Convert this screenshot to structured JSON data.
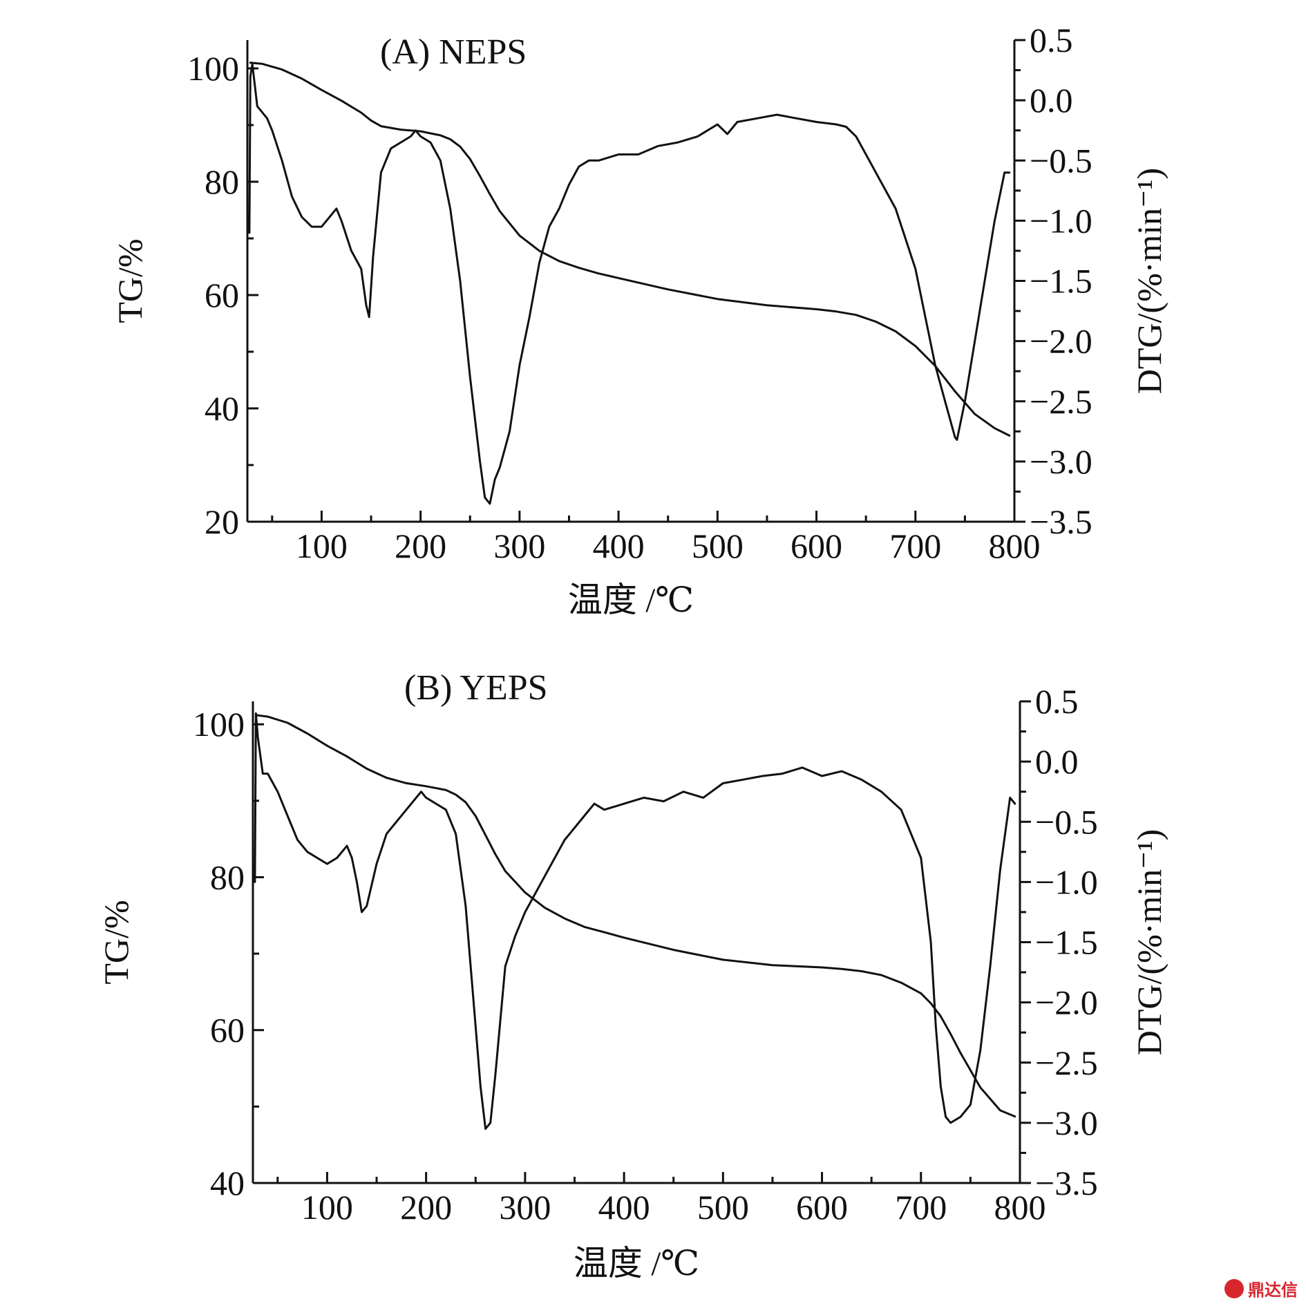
{
  "watermark": {
    "text": "鼎达信",
    "color": "#d8262f"
  },
  "chart_data": [
    {
      "type": "line",
      "title": "(A)  NEPS",
      "xlabel": "温度 /℃",
      "ylabel_left": "TG/%",
      "ylabel_right": "DTG/(%·min⁻¹)",
      "xlim": [
        25,
        800
      ],
      "ylim_left": [
        20,
        105
      ],
      "ylim_right": [
        -3.5,
        0.5
      ],
      "x_ticks": [
        100,
        200,
        300,
        400,
        500,
        600,
        700,
        800
      ],
      "y_left_ticks": [
        20,
        40,
        60,
        80,
        100
      ],
      "y_right_ticks": [
        -3.5,
        -3.0,
        -2.5,
        -2.0,
        -1.5,
        -1.0,
        -0.5,
        0.0,
        0.5
      ],
      "x_tick_labels": [
        "100",
        "200",
        "300",
        "400",
        "500",
        "600",
        "700",
        "800"
      ],
      "y_left_tick_labels": [
        "20",
        "40",
        "60",
        "80",
        "100"
      ],
      "y_right_tick_labels": [
        "−3.5",
        "−3.0",
        "−2.5",
        "−2.0",
        "−1.5",
        "−1.0",
        "−0.5",
        "0.0",
        "0.5"
      ],
      "grid": false,
      "series": [
        {
          "axis": "left",
          "x": [
            28,
            40,
            60,
            80,
            100,
            120,
            140,
            150,
            160,
            180,
            200,
            220,
            230,
            240,
            250,
            260,
            270,
            280,
            300,
            320,
            340,
            360,
            380,
            400,
            450,
            500,
            550,
            600,
            620,
            640,
            660,
            680,
            700,
            720,
            740,
            760,
            780,
            795
          ],
          "y": [
            101,
            100.8,
            99.8,
            98.2,
            96.2,
            94.3,
            92.2,
            90.8,
            89.8,
            89.2,
            88.9,
            88.2,
            87.5,
            86.2,
            84.0,
            81.0,
            77.8,
            74.8,
            70.5,
            67.8,
            66.0,
            64.8,
            63.8,
            63.0,
            61.0,
            59.3,
            58.2,
            57.5,
            57.1,
            56.5,
            55.3,
            53.6,
            51.0,
            47.5,
            43.0,
            39.0,
            36.5,
            35.2
          ]
        },
        {
          "axis": "right",
          "x": [
            27,
            28,
            30,
            35,
            40,
            45,
            50,
            60,
            70,
            80,
            90,
            100,
            110,
            115,
            120,
            130,
            140,
            145,
            148,
            152,
            160,
            170,
            180,
            190,
            195,
            200,
            210,
            220,
            230,
            240,
            250,
            260,
            265,
            270,
            275,
            280,
            290,
            300,
            310,
            320,
            330,
            340,
            350,
            360,
            370,
            380,
            400,
            420,
            440,
            460,
            480,
            500,
            510,
            520,
            540,
            560,
            580,
            600,
            620,
            630,
            640,
            650,
            660,
            680,
            700,
            710,
            720,
            730,
            740,
            742,
            750,
            760,
            770,
            780,
            790,
            795
          ],
          "y": [
            -1.1,
            0.2,
            0.3,
            -0.05,
            -0.1,
            -0.15,
            -0.25,
            -0.5,
            -0.8,
            -0.97,
            -1.05,
            -1.05,
            -0.95,
            -0.9,
            -1.0,
            -1.25,
            -1.4,
            -1.7,
            -1.8,
            -1.3,
            -0.6,
            -0.4,
            -0.35,
            -0.3,
            -0.25,
            -0.3,
            -0.35,
            -0.5,
            -0.9,
            -1.5,
            -2.3,
            -3.0,
            -3.3,
            -3.35,
            -3.15,
            -3.05,
            -2.75,
            -2.2,
            -1.8,
            -1.35,
            -1.05,
            -0.9,
            -0.7,
            -0.55,
            -0.5,
            -0.5,
            -0.45,
            -0.45,
            -0.38,
            -0.35,
            -0.3,
            -0.2,
            -0.28,
            -0.18,
            -0.15,
            -0.12,
            -0.15,
            -0.18,
            -0.2,
            -0.22,
            -0.3,
            -0.45,
            -0.6,
            -0.9,
            -1.4,
            -1.8,
            -2.2,
            -2.5,
            -2.8,
            -2.82,
            -2.5,
            -2.0,
            -1.5,
            -1.0,
            -0.6,
            -0.6
          ]
        }
      ]
    },
    {
      "type": "line",
      "title": "(B)  YEPS",
      "xlabel": "温度 /℃",
      "ylabel_left": "TG/%",
      "ylabel_right": "DTG/(%·min⁻¹)",
      "xlim": [
        25,
        800
      ],
      "ylim_left": [
        40,
        103
      ],
      "ylim_right": [
        -3.5,
        0.5
      ],
      "x_ticks": [
        100,
        200,
        300,
        400,
        500,
        600,
        700,
        800
      ],
      "y_left_ticks": [
        40,
        60,
        80,
        100
      ],
      "y_right_ticks": [
        -3.5,
        -3.0,
        -2.5,
        -2.0,
        -1.5,
        -1.0,
        -0.5,
        0.0,
        0.5
      ],
      "x_tick_labels": [
        "100",
        "200",
        "300",
        "400",
        "500",
        "600",
        "700",
        "800"
      ],
      "y_left_tick_labels": [
        "40",
        "60",
        "80",
        "100"
      ],
      "y_right_tick_labels": [
        "−3.5",
        "−3.0",
        "−2.5",
        "−2.0",
        "−1.5",
        "−1.0",
        "−0.5",
        "0.0",
        "0.5"
      ],
      "grid": false,
      "series": [
        {
          "axis": "left",
          "x": [
            28,
            40,
            60,
            80,
            100,
            120,
            140,
            160,
            180,
            200,
            220,
            230,
            240,
            250,
            260,
            270,
            280,
            300,
            320,
            340,
            360,
            380,
            400,
            450,
            500,
            550,
            600,
            620,
            640,
            660,
            680,
            700,
            710,
            720,
            730,
            740,
            760,
            780,
            795
          ],
          "y": [
            101.2,
            101,
            100.2,
            98.8,
            97.2,
            95.8,
            94.2,
            93.0,
            92.3,
            91.9,
            91.4,
            90.8,
            89.8,
            88.0,
            85.5,
            83.0,
            80.8,
            78.0,
            76.0,
            74.6,
            73.5,
            72.8,
            72.1,
            70.5,
            69.2,
            68.5,
            68.2,
            68.0,
            67.7,
            67.2,
            66.2,
            64.8,
            63.5,
            61.8,
            59.5,
            57.0,
            52.5,
            49.5,
            48.7
          ]
        },
        {
          "axis": "right",
          "x": [
            27,
            28,
            30,
            35,
            40,
            50,
            60,
            70,
            80,
            90,
            100,
            110,
            120,
            125,
            130,
            135,
            140,
            150,
            160,
            180,
            195,
            200,
            210,
            220,
            230,
            240,
            250,
            255,
            260,
            265,
            270,
            280,
            290,
            300,
            320,
            340,
            360,
            370,
            380,
            400,
            420,
            440,
            460,
            480,
            500,
            520,
            540,
            560,
            580,
            600,
            620,
            640,
            660,
            680,
            700,
            710,
            715,
            720,
            725,
            730,
            740,
            750,
            760,
            770,
            780,
            790,
            795
          ],
          "y": [
            -1.0,
            0.4,
            0.2,
            -0.1,
            -0.1,
            -0.25,
            -0.45,
            -0.65,
            -0.75,
            -0.8,
            -0.85,
            -0.8,
            -0.7,
            -0.8,
            -1.0,
            -1.25,
            -1.2,
            -0.85,
            -0.6,
            -0.4,
            -0.25,
            -0.3,
            -0.35,
            -0.4,
            -0.6,
            -1.2,
            -2.2,
            -2.7,
            -3.05,
            -3.0,
            -2.6,
            -1.7,
            -1.45,
            -1.25,
            -0.95,
            -0.65,
            -0.45,
            -0.35,
            -0.4,
            -0.35,
            -0.3,
            -0.33,
            -0.25,
            -0.3,
            -0.18,
            -0.15,
            -0.12,
            -0.1,
            -0.05,
            -0.12,
            -0.08,
            -0.15,
            -0.25,
            -0.4,
            -0.8,
            -1.5,
            -2.2,
            -2.7,
            -2.95,
            -3.0,
            -2.95,
            -2.85,
            -2.4,
            -1.7,
            -0.9,
            -0.3,
            -0.35
          ]
        }
      ]
    }
  ]
}
